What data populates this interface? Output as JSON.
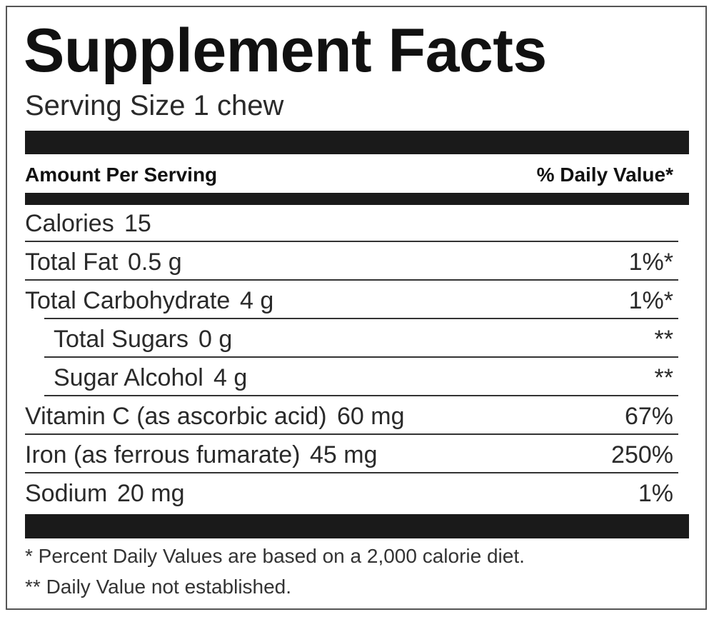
{
  "header": {
    "title": "Supplement Facts",
    "serving_size": "Serving Size 1 chew"
  },
  "table": {
    "column_headers": [
      "Amount Per Serving",
      "% Daily Value*"
    ],
    "rows": [
      {
        "label": "Calories",
        "amount": "15"
      },
      {
        "label": "Total Fat",
        "amount": "0.5 g",
        "dv": "1%*"
      },
      {
        "label": "Total Carbohydrate",
        "amount": "4 g",
        "dv": "1%*",
        "subrows": [
          {
            "label": "Total Sugars",
            "amount": "0 g",
            "dv": "**"
          },
          {
            "label": "Sugar Alcohol",
            "amount": "4 g",
            "dv": "**"
          }
        ]
      },
      {
        "label": "Vitamin C (as ascorbic acid)",
        "amount": "60 mg",
        "dv": "67%"
      },
      {
        "label": "Iron (as ferrous fumarate)",
        "amount": "45 mg",
        "dv": "250%"
      },
      {
        "label": "Sodium",
        "amount": "20 mg",
        "dv": "1%"
      }
    ]
  },
  "footnotes": [
    "* Percent Daily Values are based on a 2,000 calorie diet.",
    "** Daily Value not established."
  ]
}
